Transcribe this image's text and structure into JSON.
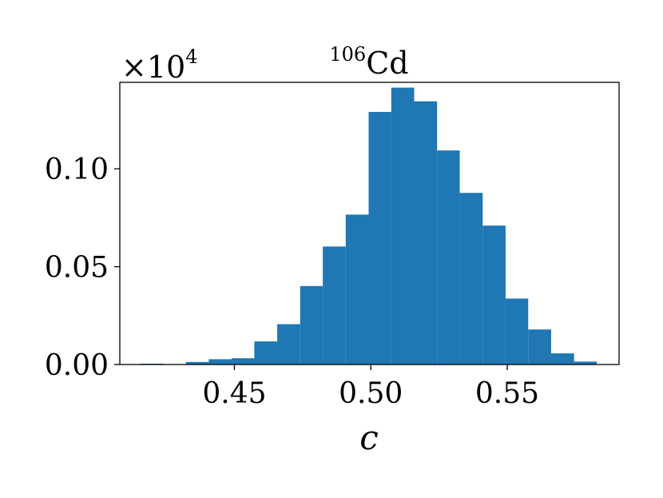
{
  "chart_data": {
    "type": "bar",
    "title_mass": "106",
    "title_element": "Cd",
    "xlabel": "c",
    "ylabel": "",
    "scale_base": "×10",
    "scale_exp": "4",
    "xlim": [
      0.408,
      0.591
    ],
    "ylim": [
      0,
      0.1442
    ],
    "x_ticks": [
      0.45,
      0.5,
      0.55
    ],
    "x_tick_labels": [
      "0.45",
      "0.50",
      "0.55"
    ],
    "y_ticks": [
      0.0,
      0.05,
      0.1
    ],
    "y_tick_labels": [
      "0.00",
      "0.05",
      "0.10"
    ],
    "bin_edges": [
      0.4155,
      0.4239,
      0.4322,
      0.4406,
      0.449,
      0.4573,
      0.4657,
      0.4741,
      0.4824,
      0.4908,
      0.4992,
      0.5075,
      0.5159,
      0.5243,
      0.5326,
      0.541,
      0.5494,
      0.5577,
      0.5661,
      0.5745,
      0.5828
    ],
    "values": [
      0.0004,
      0.0,
      0.0013,
      0.0027,
      0.0032,
      0.0118,
      0.0206,
      0.0401,
      0.0603,
      0.0766,
      0.1291,
      0.1415,
      0.1345,
      0.1094,
      0.0877,
      0.071,
      0.0337,
      0.0179,
      0.0057,
      0.0015
    ],
    "bar_color": "#1f77b4",
    "grid": false,
    "legend": "none"
  }
}
